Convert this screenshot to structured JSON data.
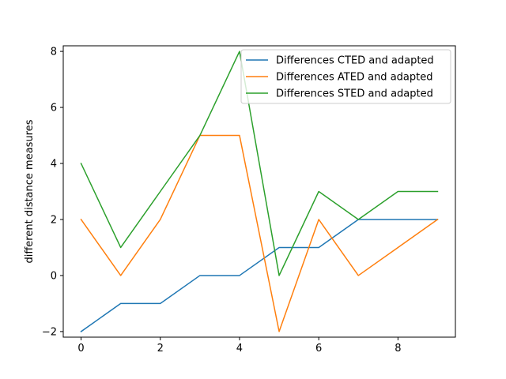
{
  "chart_data": {
    "type": "line",
    "title": "",
    "xlabel": "",
    "ylabel": "different distance measures",
    "x": [
      0,
      1,
      2,
      3,
      4,
      5,
      6,
      7,
      8,
      9
    ],
    "xlim": [
      -0.45,
      9.45
    ],
    "ylim": [
      -2.2,
      8.2
    ],
    "xticks": [
      0,
      2,
      4,
      6,
      8
    ],
    "yticks": [
      -2,
      0,
      2,
      4,
      6,
      8
    ],
    "grid": false,
    "legend_position": "top-right",
    "series": [
      {
        "name": "Differences CTED and adapted",
        "color": "#1f77b4",
        "values": [
          -2,
          -1,
          -1,
          0,
          0,
          1,
          1,
          2,
          2,
          2
        ]
      },
      {
        "name": "Differences ATED and adapted",
        "color": "#ff7f0e",
        "values": [
          2,
          0,
          2,
          5,
          5,
          -2,
          2,
          0,
          1,
          2
        ]
      },
      {
        "name": "Differences STED and adapted",
        "color": "#2ca02c",
        "values": [
          4,
          1,
          3,
          5,
          8,
          0,
          3,
          2,
          3,
          3
        ]
      }
    ]
  }
}
